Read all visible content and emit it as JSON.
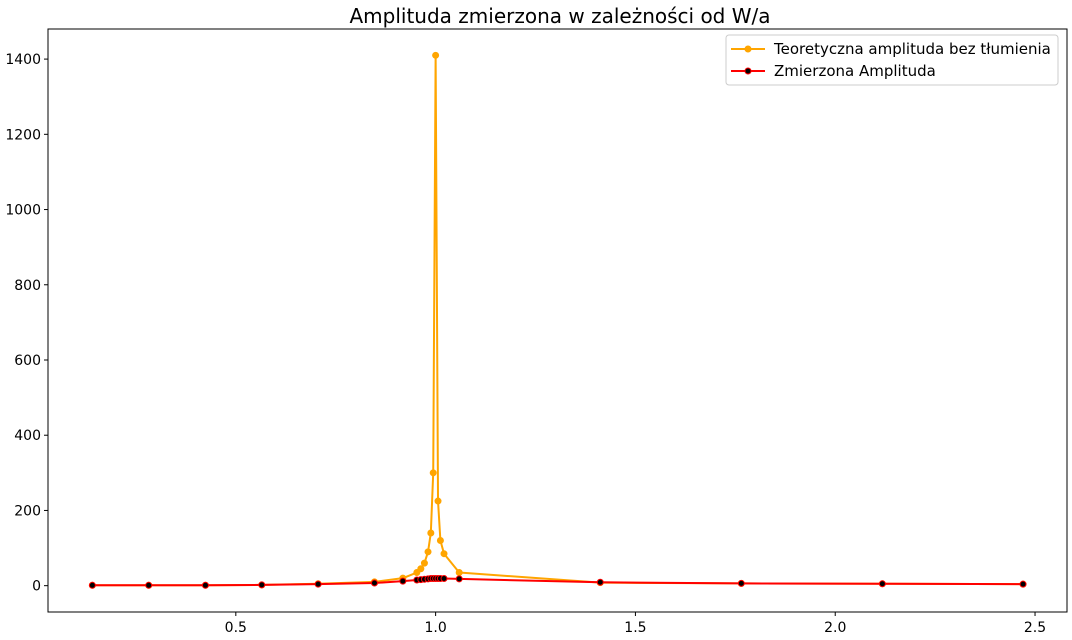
{
  "chart_data": {
    "type": "line",
    "title": "Amplituda zmierzona w zależności od W/a",
    "xlabel": "",
    "ylabel": "",
    "xlim": [
      0.03,
      2.58
    ],
    "ylim": [
      -70,
      1480
    ],
    "x_ticks": [
      0.5,
      1.0,
      1.5,
      2.0,
      2.5
    ],
    "x_tick_labels": [
      "0.5",
      "1.0",
      "1.5",
      "2.0",
      "2.5"
    ],
    "y_ticks": [
      0,
      200,
      400,
      600,
      800,
      1000,
      1200,
      1400
    ],
    "y_tick_labels": [
      "0",
      "200",
      "400",
      "600",
      "800",
      "1000",
      "1200",
      "1400"
    ],
    "grid": false,
    "legend_position": "top-right",
    "series": [
      {
        "name": "Teoretyczna amplituda bez tłumienia",
        "color": "#FFA500",
        "marker_face": "#FFA500",
        "x": [
          0.141,
          0.282,
          0.424,
          0.565,
          0.706,
          0.847,
          0.918,
          0.953,
          0.963,
          0.972,
          0.981,
          0.988,
          0.994,
          1.0,
          1.006,
          1.012,
          1.021,
          1.059,
          1.412,
          1.765,
          2.118,
          2.47
        ],
        "y": [
          1,
          1,
          1,
          2,
          5,
          10,
          20,
          35,
          45,
          60,
          90,
          140,
          300,
          1410,
          225,
          120,
          85,
          35,
          8,
          6,
          5,
          4
        ]
      },
      {
        "name": "Zmierzona Amplituda",
        "color": "#FF0000",
        "marker_face": "#000000",
        "x": [
          0.141,
          0.282,
          0.424,
          0.565,
          0.706,
          0.847,
          0.918,
          0.953,
          0.963,
          0.972,
          0.981,
          0.988,
          0.994,
          1.0,
          1.006,
          1.012,
          1.021,
          1.059,
          1.412,
          1.765,
          2.118,
          2.47
        ],
        "y": [
          1,
          1,
          1,
          2,
          4,
          7,
          12,
          15,
          16,
          17,
          18,
          19,
          19,
          19,
          19,
          19,
          19,
          18,
          9,
          6,
          5,
          4
        ]
      }
    ]
  }
}
